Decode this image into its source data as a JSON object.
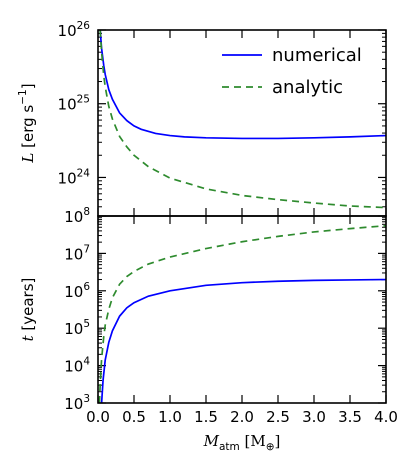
{
  "chart_data": [
    {
      "type": "line",
      "panel": "top",
      "ylabel_var": "L",
      "ylabel_units": "[erg s",
      "ylabel_units_exp": "−1",
      "ylabel_units_close": "]",
      "yscale": "log",
      "ylim": [
        3e+23,
        1e+26
      ],
      "xlim": [
        0,
        4.0
      ],
      "y_ticks": [
        {
          "value": 1e+24,
          "base": "10",
          "exp": "24"
        },
        {
          "value": 1e+25,
          "base": "10",
          "exp": "25"
        },
        {
          "value": 1e+26,
          "base": "10",
          "exp": "26"
        }
      ],
      "legend_position": "top-right",
      "series": [
        {
          "name": "numerical",
          "color": "#0000ff",
          "style": "solid",
          "x": [
            0.03,
            0.05,
            0.08,
            0.1,
            0.15,
            0.2,
            0.3,
            0.4,
            0.5,
            0.6,
            0.8,
            1.0,
            1.2,
            1.5,
            2.0,
            2.5,
            3.0,
            3.5,
            4.0
          ],
          "y": [
            1e+26,
            5.6e+25,
            3.3e+25,
            2.5e+25,
            1.55e+25,
            1.15e+25,
            7.5e+24,
            5.9e+24,
            5e+24,
            4.5e+24,
            3.95e+24,
            3.7e+24,
            3.55e+24,
            3.45e+24,
            3.38e+24,
            3.38e+24,
            3.45e+24,
            3.55e+24,
            3.7e+24
          ]
        },
        {
          "name": "analytic",
          "color": "#2e8b2e",
          "style": "dashed",
          "x": [
            0.03,
            0.05,
            0.08,
            0.1,
            0.15,
            0.2,
            0.3,
            0.4,
            0.5,
            0.7,
            1.0,
            1.5,
            2.0,
            2.5,
            3.0,
            3.5,
            4.0
          ],
          "y": [
            1e+26,
            5e+25,
            2.4e+25,
            1.7e+25,
            9.2e+24,
            6.2e+24,
            3.6e+24,
            2.6e+24,
            2e+24,
            1.4e+24,
            9.8e+23,
            7e+23,
            5.7e+23,
            5e+23,
            4.5e+23,
            4.1e+23,
            3.9e+23
          ]
        }
      ]
    },
    {
      "type": "line",
      "panel": "bottom",
      "ylabel_var": "t",
      "ylabel_units": "[years]",
      "yscale": "log",
      "ylim": [
        1000.0,
        100000000.0
      ],
      "xlim": [
        0,
        4.0
      ],
      "xlabel_var": "M",
      "xlabel_sub": "atm",
      "xlabel_units": "[M",
      "xlabel_units_sub": "⊕",
      "xlabel_units_close": "]",
      "y_ticks": [
        {
          "value": 1000.0,
          "base": "10",
          "exp": "3"
        },
        {
          "value": 10000.0,
          "base": "10",
          "exp": "4"
        },
        {
          "value": 100000.0,
          "base": "10",
          "exp": "5"
        },
        {
          "value": 1000000.0,
          "base": "10",
          "exp": "6"
        },
        {
          "value": 10000000.0,
          "base": "10",
          "exp": "7"
        },
        {
          "value": 100000000.0,
          "base": "10",
          "exp": "8"
        }
      ],
      "x_ticks": [
        "0.0",
        "0.5",
        "1.0",
        "1.5",
        "2.0",
        "2.5",
        "3.0",
        "3.5",
        "4.0"
      ],
      "series": [
        {
          "name": "numerical",
          "color": "#0000ff",
          "style": "solid",
          "x": [
            0.05,
            0.07,
            0.1,
            0.15,
            0.2,
            0.3,
            0.4,
            0.5,
            0.7,
            1.0,
            1.5,
            2.0,
            2.5,
            3.0,
            3.5,
            4.0
          ],
          "y": [
            1000.0,
            4000.0,
            14000.0,
            42000.0,
            85000.0,
            210000.0,
            350000.0,
            480000.0,
            720000.0,
            1000000.0,
            1400000.0,
            1650000.0,
            1800000.0,
            1900000.0,
            1950000.0,
            2000000.0
          ]
        },
        {
          "name": "analytic",
          "color": "#2e8b2e",
          "style": "dashed",
          "x": [
            0.02,
            0.03,
            0.05,
            0.08,
            0.1,
            0.15,
            0.2,
            0.3,
            0.4,
            0.5,
            0.7,
            1.0,
            1.5,
            2.0,
            2.5,
            3.0,
            3.5,
            4.0
          ],
          "y": [
            1000.0,
            3000.0,
            15000.0,
            60000.0,
            120000.0,
            320000.0,
            650000.0,
            1500000.0,
            2400000.0,
            3300000.0,
            5200000.0,
            8000000.0,
            13500000.0,
            20500000.0,
            28500000.0,
            37500000.0,
            46000000.0,
            55000000.0
          ]
        }
      ]
    }
  ]
}
